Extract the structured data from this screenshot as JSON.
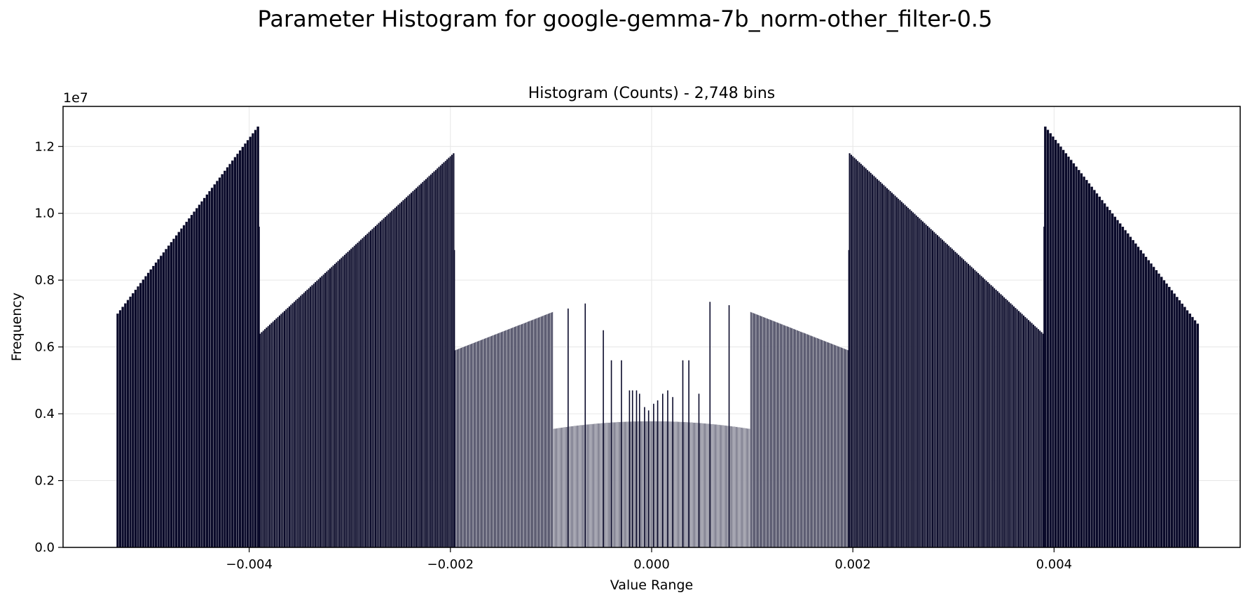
{
  "figure": {
    "suptitle": "Parameter Histogram for google-gemma-7b_norm-other_filter-0.5"
  },
  "chart_data": {
    "type": "bar",
    "title": "Histogram (Counts) - 2,748 bins",
    "xlabel": "Value Range",
    "ylabel": "Frequency",
    "y_offset_label": "1e7",
    "y_scale": 10000000,
    "xlim": [
      -0.00585,
      0.00585
    ],
    "ylim": [
      0,
      13200000
    ],
    "xticks": [
      -0.004,
      -0.002,
      0.0,
      0.002,
      0.004
    ],
    "xtick_labels": [
      "−0.004",
      "−0.002",
      "0.000",
      "0.002",
      "0.004"
    ],
    "yticks": [
      0,
      2000000,
      4000000,
      6000000,
      8000000,
      10000000,
      12000000
    ],
    "ytick_labels": [
      "0.0",
      "0.2",
      "0.4",
      "0.6",
      "0.8",
      "1.0",
      "1.2"
    ],
    "grid": true,
    "bar_color": "#0a0a2a",
    "edge_color": "#ffffff",
    "segments": [
      {
        "x_start": -0.00532,
        "x_end": -0.0039,
        "y_start": 7000000,
        "y_end": 12600000,
        "bars": 56
      },
      {
        "x_start": -0.0039,
        "x_end": -0.00196,
        "y_start": 6400000,
        "y_end": 11800000,
        "bars": 120
      },
      {
        "x_start": -0.00196,
        "x_end": -0.00098,
        "y_start": 5900000,
        "y_end": 7050000,
        "bars": 170
      },
      {
        "x_start": -0.00098,
        "x_end": 0.00098,
        "y_start": 3550000,
        "y_end": 3550000,
        "y_peak": 3780000,
        "bars": 600
      },
      {
        "x_start": 0.00098,
        "x_end": 0.00196,
        "y_start": 7050000,
        "y_end": 5900000,
        "bars": 170
      },
      {
        "x_start": 0.00196,
        "x_end": 0.0039,
        "y_start": 11800000,
        "y_end": 6400000,
        "bars": 120
      },
      {
        "x_start": 0.0039,
        "x_end": 0.00544,
        "y_start": 12600000,
        "y_end": 6700000,
        "bars": 60
      }
    ],
    "spikes": [
      {
        "x": -0.0039,
        "y": 9600000
      },
      {
        "x": -0.00196,
        "y": 8900000
      },
      {
        "x": 0.00196,
        "y": 8900000
      },
      {
        "x": 0.0039,
        "y": 9600000
      },
      {
        "x": -0.00083,
        "y": 7150000
      },
      {
        "x": -0.00066,
        "y": 7300000
      },
      {
        "x": -0.00048,
        "y": 6500000
      },
      {
        "x": -0.0004,
        "y": 5600000
      },
      {
        "x": -0.0003,
        "y": 5600000
      },
      {
        "x": -0.00022,
        "y": 4700000
      },
      {
        "x": -0.00019,
        "y": 4700000
      },
      {
        "x": -0.00015,
        "y": 4700000
      },
      {
        "x": -0.00012,
        "y": 4600000
      },
      {
        "x": -7e-05,
        "y": 4200000
      },
      {
        "x": -3e-05,
        "y": 4100000
      },
      {
        "x": 2e-05,
        "y": 4300000
      },
      {
        "x": 6e-05,
        "y": 4400000
      },
      {
        "x": 0.00011,
        "y": 4600000
      },
      {
        "x": 0.00016,
        "y": 4700000
      },
      {
        "x": 0.00021,
        "y": 4500000
      },
      {
        "x": 0.00031,
        "y": 5600000
      },
      {
        "x": 0.00037,
        "y": 5600000
      },
      {
        "x": 0.00047,
        "y": 4600000
      },
      {
        "x": 0.00058,
        "y": 7350000
      },
      {
        "x": 0.00077,
        "y": 7250000
      }
    ]
  }
}
